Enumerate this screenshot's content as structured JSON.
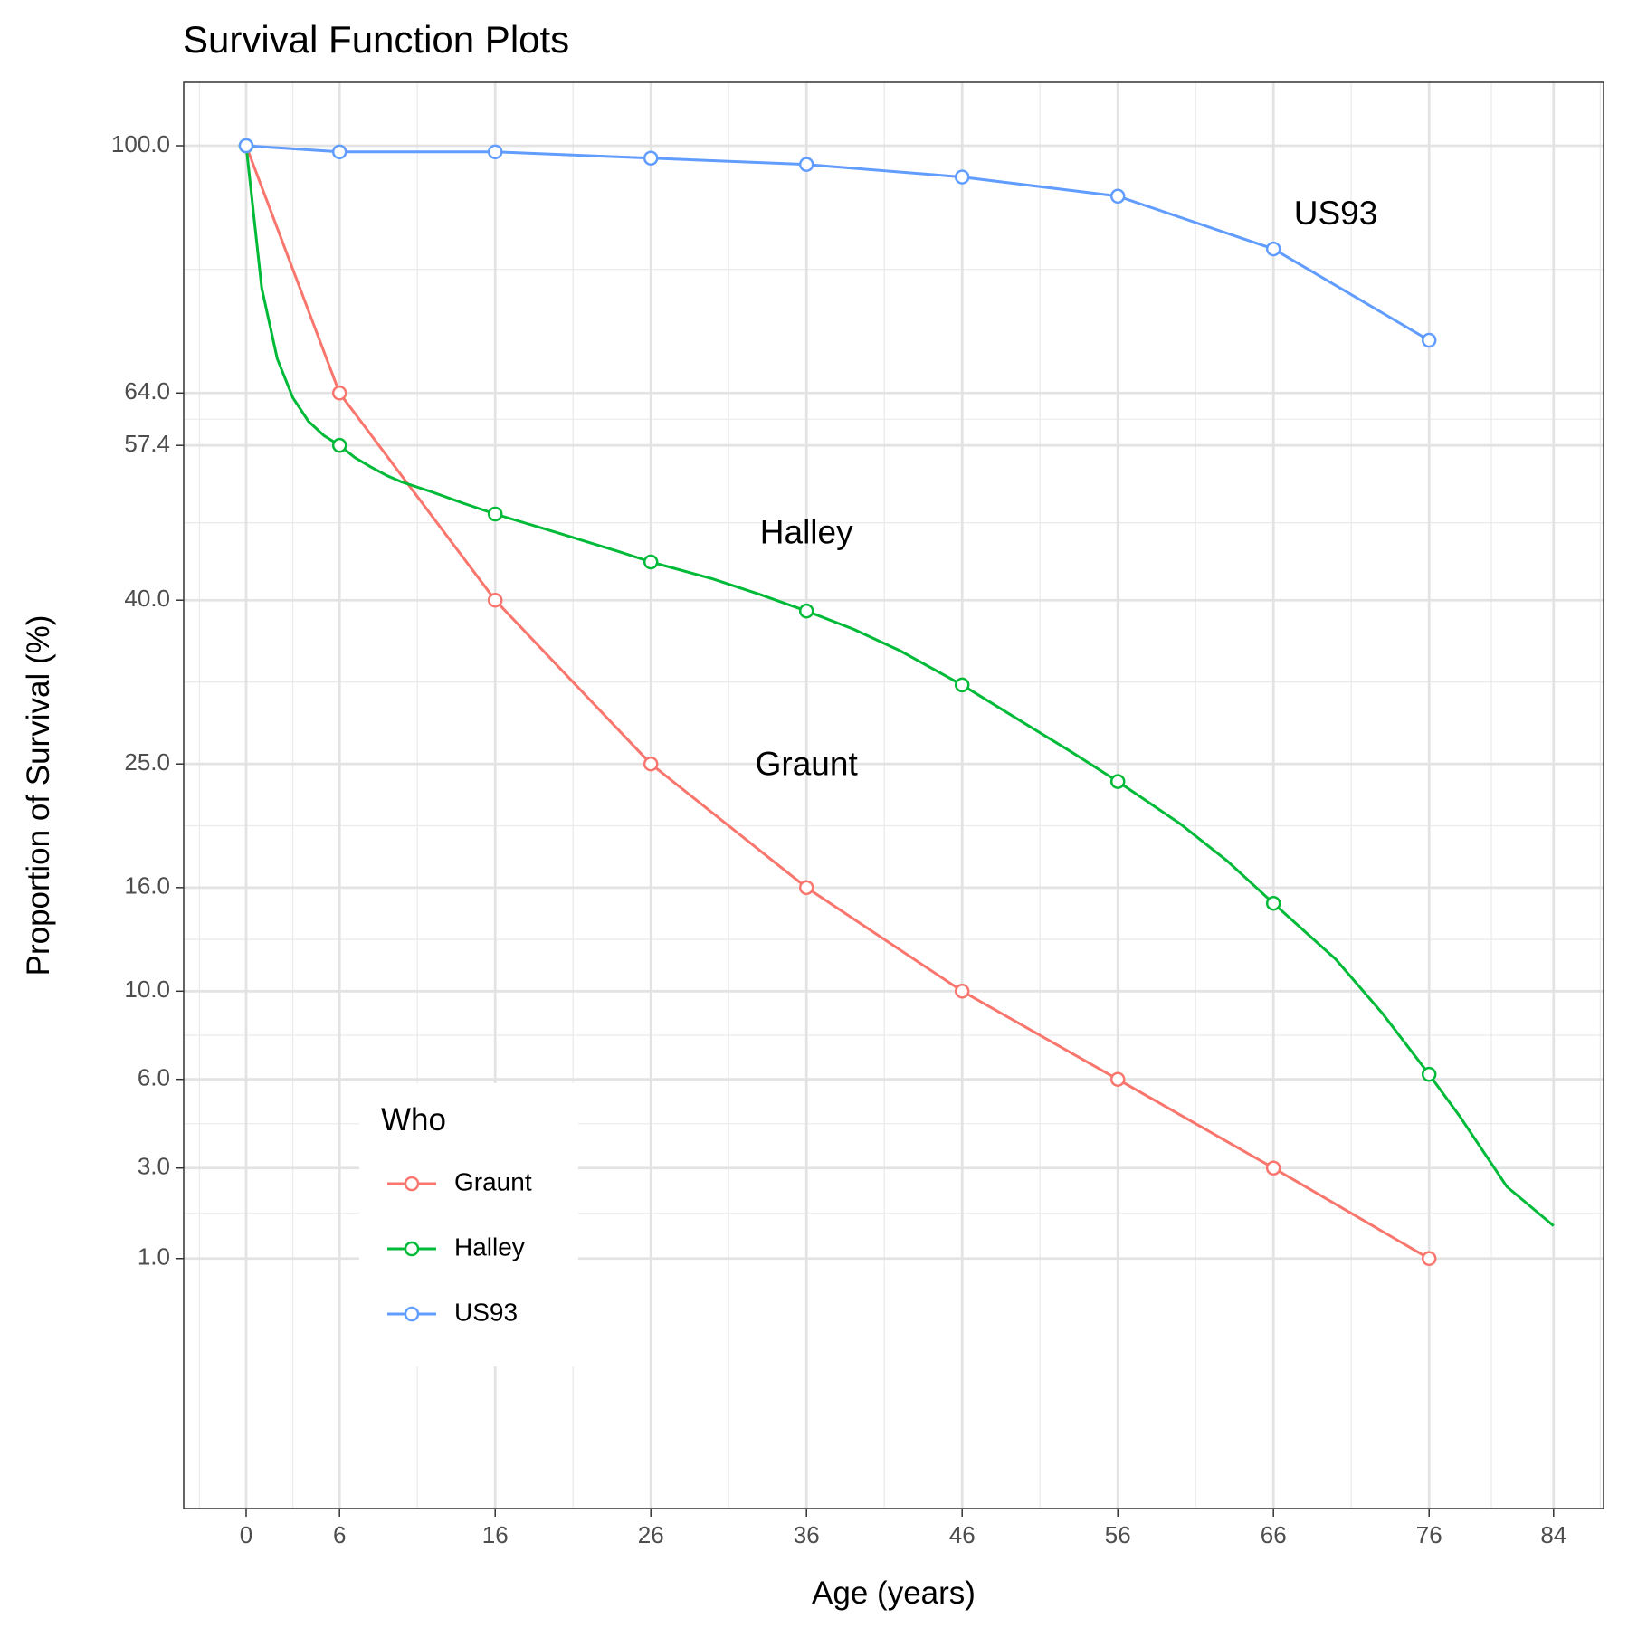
{
  "chart_data": {
    "type": "line",
    "title": "Survival Function Plots",
    "xlabel": "Age (years)",
    "ylabel": "Proportion of Survival (%)",
    "x_ticks": [
      0,
      6,
      16,
      26,
      36,
      46,
      56,
      66,
      76,
      84
    ],
    "y_ticks": [
      1.0,
      3.0,
      6.0,
      10.0,
      16.0,
      25.0,
      40.0,
      57.4,
      64.0,
      100.0
    ],
    "y_tick_labels": [
      "1.0",
      "3.0",
      "6.0",
      "10.0",
      "16.0",
      "25.0",
      "40.0",
      "57.4",
      "64.0",
      "100.0"
    ],
    "y_scale": "sqrt",
    "grid": true,
    "legend": {
      "title": "Who",
      "placement": "inside bottom-left",
      "entries": [
        "Graunt",
        "Halley",
        "US93"
      ]
    },
    "annotations": [
      {
        "text": "US93",
        "x": 70,
        "y": 89
      },
      {
        "text": "Halley",
        "x": 36,
        "y": 47
      },
      {
        "text": "Graunt",
        "x": 36,
        "y": 24.8
      }
    ],
    "series": [
      {
        "name": "Graunt",
        "color": "#f8766d",
        "points": [
          [
            0,
            100
          ],
          [
            6,
            64
          ],
          [
            16,
            40
          ],
          [
            26,
            25
          ],
          [
            36,
            16
          ],
          [
            46,
            10
          ],
          [
            56,
            6
          ],
          [
            66,
            3
          ],
          [
            76,
            1
          ]
        ],
        "line": [
          [
            0,
            100
          ],
          [
            6,
            64
          ],
          [
            16,
            40
          ],
          [
            26,
            25
          ],
          [
            36,
            16
          ],
          [
            46,
            10
          ],
          [
            56,
            6
          ],
          [
            66,
            3
          ],
          [
            76,
            1
          ]
        ]
      },
      {
        "name": "Halley",
        "color": "#00ba38",
        "points": [
          [
            0,
            100
          ],
          [
            6,
            57.4
          ],
          [
            16,
            49.3
          ],
          [
            26,
            44
          ],
          [
            36,
            38.9
          ],
          [
            46,
            31.8
          ],
          [
            56,
            23.6
          ],
          [
            66,
            15
          ],
          [
            76,
            6.2
          ]
        ],
        "line": [
          [
            0,
            100
          ],
          [
            1,
            78.3
          ],
          [
            2,
            68.5
          ],
          [
            3,
            63.4
          ],
          [
            4,
            60.4
          ],
          [
            5,
            58.6
          ],
          [
            6,
            57.4
          ],
          [
            7,
            55.9
          ],
          [
            8,
            54.8
          ],
          [
            9,
            53.8
          ],
          [
            10,
            53
          ],
          [
            12,
            51.8
          ],
          [
            14,
            50.5
          ],
          [
            16,
            49.3
          ],
          [
            20,
            47.2
          ],
          [
            24,
            45.1
          ],
          [
            26,
            44
          ],
          [
            30,
            42.2
          ],
          [
            33,
            40.6
          ],
          [
            36,
            38.9
          ],
          [
            39,
            37.1
          ],
          [
            42,
            35
          ],
          [
            46,
            31.8
          ],
          [
            50,
            28.4
          ],
          [
            53,
            26
          ],
          [
            56,
            23.6
          ],
          [
            60,
            20.4
          ],
          [
            63,
            17.8
          ],
          [
            66,
            15
          ],
          [
            70,
            11.7
          ],
          [
            73,
            8.9
          ],
          [
            76,
            6.2
          ],
          [
            78,
            4.6
          ],
          [
            81,
            2.5
          ],
          [
            84,
            1.6
          ]
        ]
      },
      {
        "name": "US93",
        "color": "#619cff",
        "points": [
          [
            0,
            100
          ],
          [
            6,
            99
          ],
          [
            16,
            99
          ],
          [
            26,
            98
          ],
          [
            36,
            97
          ],
          [
            46,
            95
          ],
          [
            56,
            92
          ],
          [
            66,
            84
          ],
          [
            76,
            71
          ]
        ],
        "line": [
          [
            0,
            100
          ],
          [
            6,
            99
          ],
          [
            16,
            99
          ],
          [
            26,
            98
          ],
          [
            36,
            97
          ],
          [
            46,
            95
          ],
          [
            56,
            92
          ],
          [
            66,
            84
          ],
          [
            76,
            71
          ]
        ]
      }
    ]
  }
}
